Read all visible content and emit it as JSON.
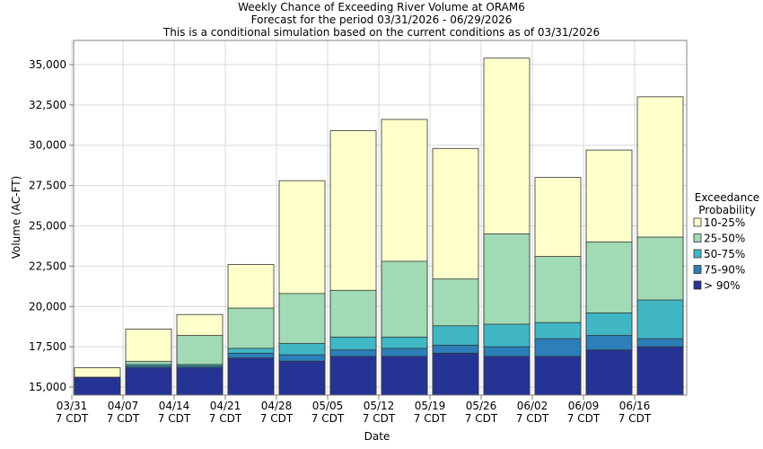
{
  "chart_data": {
    "type": "bar",
    "stacked": true,
    "title_lines": [
      "Weekly Chance of Exceeding River Volume at ORAM6",
      "Forecast for the period 03/31/2026 - 06/29/2026",
      "This is a conditional simulation based on the current conditions as of 03/31/2026"
    ],
    "xlabel": "Date",
    "ylabel": "Volume (AC-FT)",
    "ylim": [
      14500,
      36500
    ],
    "yticks": [
      15000,
      17500,
      20000,
      22500,
      25000,
      27500,
      30000,
      32500,
      35000
    ],
    "ytick_labels": [
      "15,000",
      "17,500",
      "20,000",
      "22,500",
      "25,000",
      "27,500",
      "30,000",
      "32,500",
      "35,000"
    ],
    "categories": [
      "03/31",
      "04/07",
      "04/14",
      "04/21",
      "04/28",
      "05/05",
      "05/12",
      "05/19",
      "05/26",
      "06/02",
      "06/09",
      "06/16"
    ],
    "category_sublabel": "7 CDT",
    "grid": true,
    "legend": {
      "title_lines": [
        "Exceedance",
        "Probability"
      ],
      "placement": "right",
      "entries": [
        {
          "label": "10-25%",
          "color": "#ffffcc"
        },
        {
          "label": "25-50%",
          "color": "#a1dab4"
        },
        {
          "label": "50-75%",
          "color": "#41b6c4"
        },
        {
          "label": "75-90%",
          "color": "#2c7fb8"
        },
        {
          "label": "> 90%",
          "color": "#253494"
        }
      ]
    },
    "levels": [
      {
        "name": "> 90%",
        "color": "#253494",
        "values": [
          15600,
          16200,
          16200,
          16800,
          16600,
          16900,
          16900,
          17100,
          16900,
          16900,
          17300,
          17500
        ]
      },
      {
        "name": "75-90%",
        "color": "#2c7fb8",
        "values": [
          15600,
          16300,
          16300,
          17100,
          17000,
          17300,
          17400,
          17600,
          17500,
          18000,
          18200,
          18000
        ]
      },
      {
        "name": "50-75%",
        "color": "#41b6c4",
        "values": [
          15600,
          16400,
          16400,
          17400,
          17700,
          18100,
          18100,
          18800,
          18900,
          19000,
          19600,
          20400
        ]
      },
      {
        "name": "25-50%",
        "color": "#a1dab4",
        "values": [
          15600,
          16600,
          18200,
          19900,
          20800,
          21000,
          22800,
          21700,
          24500,
          23100,
          24000,
          24300
        ]
      },
      {
        "name": "10-25%",
        "color": "#ffffcc",
        "values": [
          16200,
          18600,
          19500,
          22600,
          27800,
          30900,
          31600,
          29800,
          35400,
          28000,
          29700,
          33000
        ]
      }
    ]
  }
}
